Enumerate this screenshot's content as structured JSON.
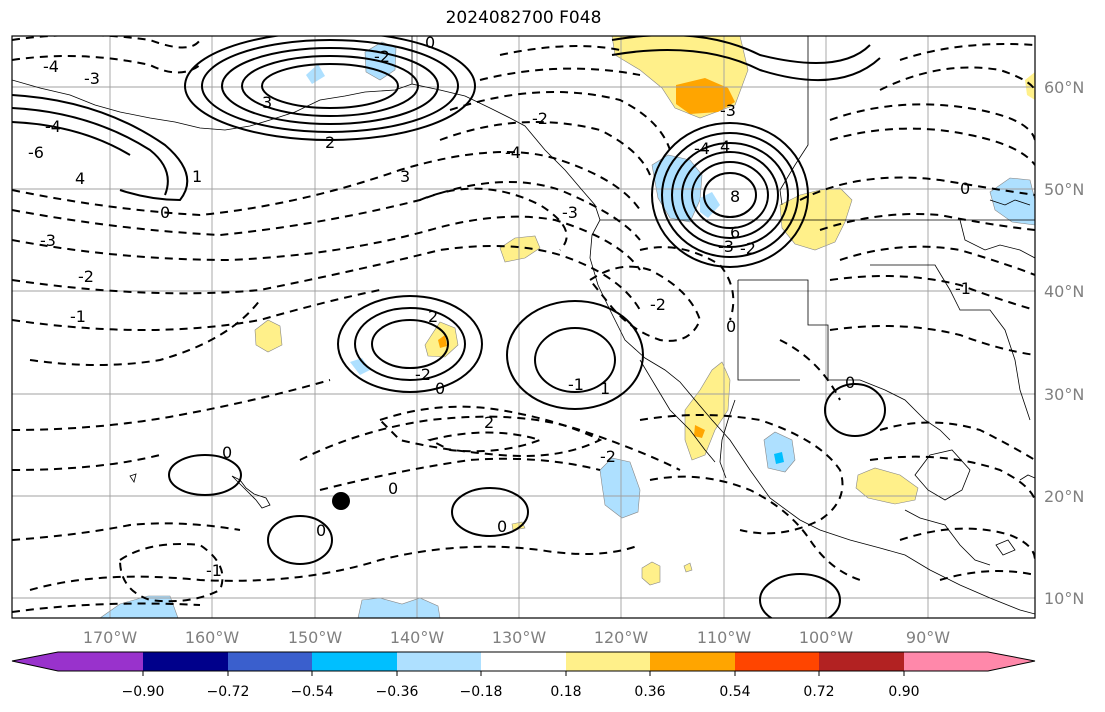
{
  "title": "2024082700 F048",
  "map": {
    "lat_labels": [
      "60°N",
      "50°N",
      "40°N",
      "30°N",
      "20°N",
      "10°N"
    ],
    "lon_labels": [
      "170°W",
      "160°W",
      "150°W",
      "140°W",
      "130°W",
      "120°W",
      "110°W",
      "100°W",
      "90°W"
    ],
    "contour_labels": [
      "-4",
      "-3",
      "3",
      "-2",
      "0",
      "2",
      "-4",
      "-6",
      "4",
      "-3",
      "3",
      "1",
      "0",
      "-4",
      "-3",
      "-2",
      "-1",
      "-2",
      "2",
      "-2",
      "0",
      "-1",
      "1",
      "2",
      "-2",
      "0",
      "0",
      "-1",
      "0",
      "0",
      "-4",
      "-3",
      "-2",
      "4",
      "8",
      "6",
      "-3",
      "-2",
      "0",
      "0",
      "-1",
      "0"
    ],
    "marker": "black-dot",
    "colors": {
      "land_outline": "#000000",
      "grid": "#a0a0a0",
      "positive_light": "#fff08a",
      "positive_mid": "#ffa500",
      "negative_light": "#aee0ff",
      "negative_mid": "#00bfff"
    }
  },
  "colorbar": {
    "ticks": [
      "−0.90",
      "−0.72",
      "−0.54",
      "−0.36",
      "−0.18",
      "0.18",
      "0.36",
      "0.54",
      "0.72",
      "0.90"
    ],
    "colors": [
      "#9932cc",
      "#00008b",
      "#3a5fcd",
      "#00bfff",
      "#aee0ff",
      "#ffffff",
      "#fff08a",
      "#ffa500",
      "#ff4500",
      "#b22222",
      "#ff88aa"
    ]
  }
}
